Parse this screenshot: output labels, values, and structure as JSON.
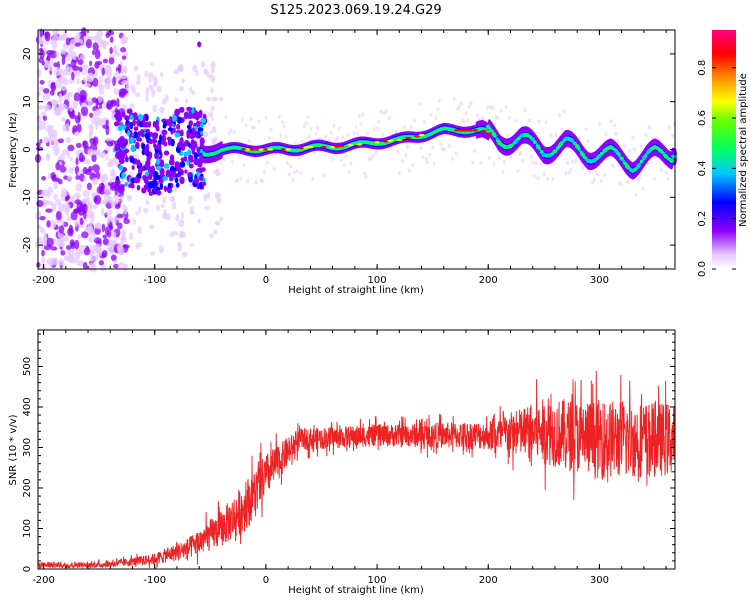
{
  "title": "S125.2023.069.19.24.G29",
  "chart_data": [
    {
      "type": "heatmap",
      "xlabel": "Height of straight line (km)",
      "ylabel": "Frequency (Hz)",
      "xlim": [
        -205,
        368
      ],
      "ylim": [
        -25,
        25
      ],
      "x_ticks": [
        "-200",
        "-100",
        "0",
        "100",
        "200",
        "300"
      ],
      "y_ticks": [
        "20",
        "10",
        "0",
        "-10",
        "-20"
      ],
      "colorbar": {
        "label": "Normalized spectral amplitude",
        "range": [
          0,
          0.95
        ],
        "ticks": [
          "0.0",
          "0.2",
          "0.4",
          "0.6",
          "0.8"
        ]
      },
      "ridge": {
        "x": [
          -130,
          -110,
          -90,
          -70,
          -55,
          -40,
          -20,
          0,
          20,
          40,
          60,
          80,
          100,
          120,
          140,
          160,
          180,
          195,
          210,
          230,
          250,
          270,
          290,
          310,
          330,
          350,
          365
        ],
        "y": [
          1,
          -1,
          -2,
          2,
          -1,
          0,
          0,
          0,
          0,
          0.5,
          0.5,
          1,
          1.5,
          2,
          3,
          4,
          4,
          4,
          2,
          2,
          0,
          1,
          -1,
          -1,
          -3,
          -1,
          -1
        ]
      },
      "colors": [
        "#ffffff",
        "#e6c8ff",
        "#8c00ff",
        "#0000ff",
        "#00c8ff",
        "#00ff64",
        "#ffff00",
        "#ff8c00",
        "#ff0000",
        "#ff0080"
      ]
    },
    {
      "type": "line",
      "xlabel": "Height of straight line (km)",
      "ylabel": "SNR (10 * v/v)",
      "xlim": [
        -205,
        368
      ],
      "ylim": [
        0,
        590
      ],
      "x_ticks": [
        "-200",
        "-100",
        "0",
        "100",
        "200",
        "300"
      ],
      "y_ticks": [
        "0",
        "100",
        "200",
        "300",
        "400",
        "500"
      ],
      "series": [
        {
          "color": "#ee2222",
          "envelope_x": [
            -205,
            -150,
            -130,
            -100,
            -70,
            -40,
            -20,
            0,
            20,
            30,
            100,
            200,
            250,
            300,
            368
          ],
          "envelope_mean": [
            10,
            10,
            15,
            25,
            50,
            100,
            150,
            230,
            290,
            320,
            330,
            330,
            340,
            320,
            320
          ],
          "envelope_spread": [
            8,
            8,
            10,
            15,
            30,
            50,
            70,
            60,
            40,
            30,
            30,
            40,
            90,
            110,
            100
          ]
        }
      ]
    }
  ]
}
